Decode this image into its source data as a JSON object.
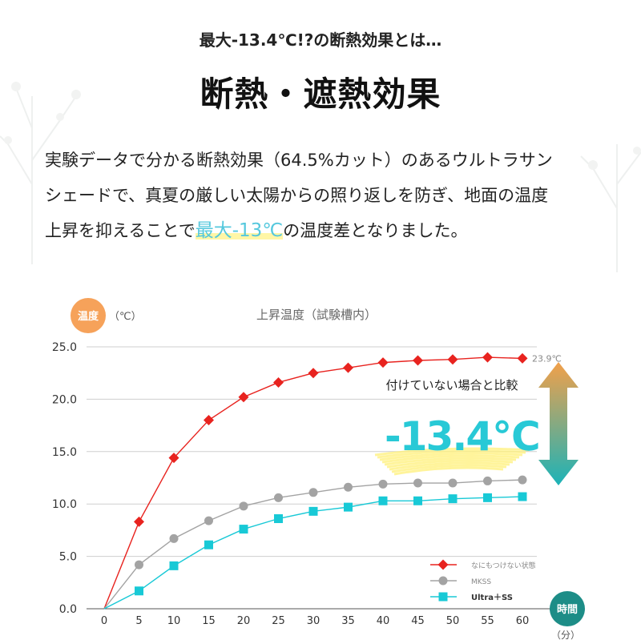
{
  "header": {
    "subtitle": "最大-13.4℃!?の断熱効果とは…",
    "title": "断熱・遮熱効果"
  },
  "body": {
    "line1": "実験データで分かる断熱効果（64.5%カット）のあるウルトラサン",
    "line2": "シェードで、真夏の厳しい太陽からの照り返しを防ぎ、地面の温度",
    "line3_before": "上昇を抑えることで",
    "line3_highlight": "最大-13℃",
    "line3_after": "の温度差となりました。"
  },
  "chart_data": {
    "type": "line",
    "title": "上昇温度（試験槽内）",
    "ylabel": "温度",
    "yunit": "（℃）",
    "xlabel": "時間",
    "xunit": "（分）",
    "ylim": [
      0,
      25
    ],
    "yticks": [
      "0.0",
      "5.0",
      "10.0",
      "15.0",
      "20.0",
      "25.0"
    ],
    "x": [
      0,
      5,
      10,
      15,
      20,
      25,
      30,
      35,
      40,
      45,
      50,
      55,
      60
    ],
    "series": [
      {
        "name": "なにもつけない状態",
        "color": "#e8231f",
        "marker": "diamond",
        "values": [
          0,
          8.3,
          14.4,
          18.0,
          20.2,
          21.6,
          22.5,
          23.0,
          23.5,
          23.7,
          23.8,
          24.0,
          23.9
        ]
      },
      {
        "name": "MKSS",
        "color": "#a3a3a3",
        "marker": "circle",
        "values": [
          0,
          4.2,
          6.7,
          8.4,
          9.8,
          10.6,
          11.1,
          11.6,
          11.9,
          12.0,
          12.0,
          12.2,
          12.3
        ]
      },
      {
        "name": "Ultra＋SS",
        "color": "#18c9d6",
        "marker": "square",
        "values": [
          0,
          1.7,
          4.1,
          6.1,
          7.6,
          8.6,
          9.3,
          9.7,
          10.3,
          10.3,
          10.5,
          10.6,
          10.7
        ]
      }
    ],
    "annotations": {
      "end_label": "23.9℃",
      "compare_label": "付けていない場合と比較",
      "diff_label": "-13.4℃"
    },
    "grid": true,
    "legend_position": "bottom-right"
  }
}
